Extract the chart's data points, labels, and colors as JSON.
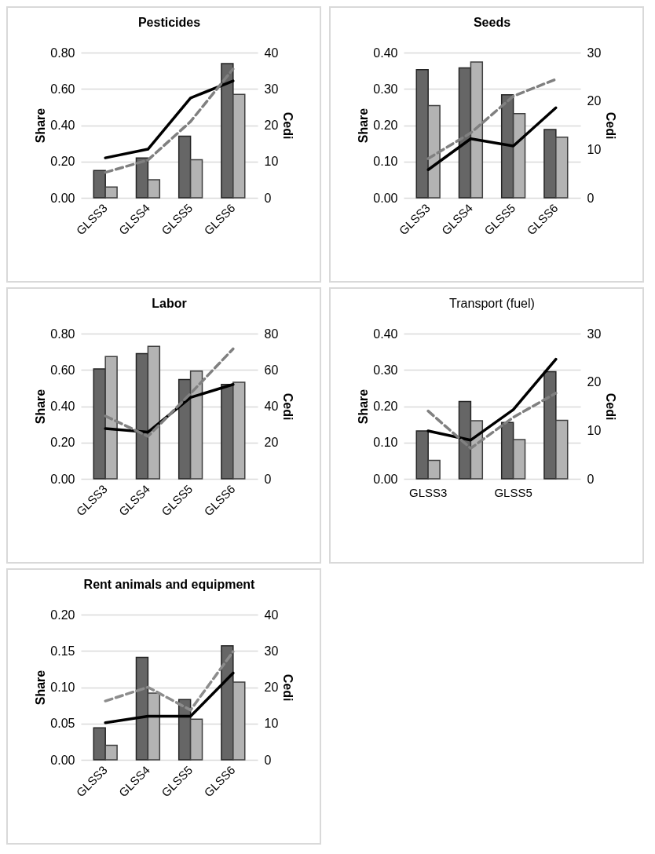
{
  "chart_data": [
    {
      "type": "bar",
      "title": "Pesticides",
      "ylabel": "Share",
      "y2label": "Cedi",
      "categories": [
        "GLSS3",
        "GLSS4",
        "GLSS5",
        "GLSS6"
      ],
      "ylim": [
        0,
        0.8
      ],
      "yticks": [
        {
          "value": 0,
          "label": "0.00"
        },
        {
          "value": 0.2,
          "label": "0.20"
        },
        {
          "value": 0.4,
          "label": "0.40"
        },
        {
          "value": 0.6,
          "label": "0.60"
        },
        {
          "value": 0.8,
          "label": "0.80"
        }
      ],
      "y2lim": [
        0,
        40
      ],
      "y2ticks": [
        0,
        10,
        20,
        30,
        40
      ],
      "grid": "y",
      "series": [
        {
          "color": "#666666",
          "values": [
            0.15,
            0.22,
            0.34,
            0.74
          ]
        },
        {
          "color": "#b3b3b3",
          "values": [
            0.06,
            0.1,
            0.21,
            0.57
          ]
        },
        {
          "type": "line",
          "axis": "y2",
          "color": "#000000",
          "line_style": "solid",
          "values": [
            11,
            13.4,
            27.5,
            32.2
          ]
        },
        {
          "type": "line",
          "axis": "y2",
          "color": "#808080",
          "line_style": "dashed",
          "values": [
            7,
            10.4,
            21,
            35.5
          ]
        }
      ]
    },
    {
      "type": "bar",
      "title": "Seeds",
      "ylabel": "Share",
      "y2label": "Cedi",
      "categories": [
        "GLSS3",
        "GLSS4",
        "GLSS5",
        "GLSS6"
      ],
      "ylim": [
        0,
        0.4
      ],
      "yticks": [
        {
          "value": 0,
          "label": "0.00"
        },
        {
          "value": 0.1,
          "label": "0.10"
        },
        {
          "value": 0.2,
          "label": "0.20"
        },
        {
          "value": 0.3,
          "label": "0.30"
        },
        {
          "value": 0.4,
          "label": "0.40"
        }
      ],
      "y2lim": [
        0,
        30
      ],
      "y2ticks": [
        0,
        10,
        20,
        30
      ],
      "grid": "y",
      "series": [
        {
          "color": "#666666",
          "values": [
            0.353,
            0.358,
            0.284,
            0.188
          ]
        },
        {
          "color": "#b3b3b3",
          "values": [
            0.254,
            0.374,
            0.232,
            0.167
          ]
        },
        {
          "type": "line",
          "axis": "y2",
          "color": "#000000",
          "line_style": "solid",
          "values": [
            5.8,
            12.2,
            10.7,
            18.6
          ]
        },
        {
          "type": "line",
          "axis": "y2",
          "color": "#808080",
          "line_style": "dashed",
          "values": [
            8.1,
            13.4,
            21,
            24.5
          ]
        }
      ]
    },
    {
      "type": "bar",
      "title": "Labor",
      "ylabel": "Share",
      "y2label": "Cedi",
      "categories": [
        "GLSS3",
        "GLSS4",
        "GLSS5",
        "GLSS6"
      ],
      "ylim": [
        0,
        0.8
      ],
      "yticks": [
        {
          "value": 0,
          "label": "0.00"
        },
        {
          "value": 0.2,
          "label": "0.20"
        },
        {
          "value": 0.4,
          "label": "0.40"
        },
        {
          "value": 0.6,
          "label": "0.60"
        },
        {
          "value": 0.8,
          "label": "0.80"
        }
      ],
      "y2lim": [
        0,
        80
      ],
      "y2ticks": [
        0,
        20,
        40,
        60,
        80
      ],
      "grid": "y",
      "series": [
        {
          "color": "#666666",
          "values": [
            0.605,
            0.69,
            0.547,
            0.52
          ]
        },
        {
          "color": "#b3b3b3",
          "values": [
            0.674,
            0.73,
            0.593,
            0.532
          ]
        },
        {
          "type": "line",
          "axis": "y2",
          "color": "#000000",
          "line_style": "solid",
          "values": [
            27.7,
            25.7,
            44.8,
            52
          ]
        },
        {
          "type": "line",
          "axis": "y2",
          "color": "#808080",
          "line_style": "dashed",
          "values": [
            34.6,
            23.4,
            47,
            71.6
          ]
        }
      ]
    },
    {
      "type": "bar",
      "title": "Transport (fuel)",
      "ylabel": "Share",
      "y2label": "Cedi",
      "categories": [
        "GLSS3",
        null,
        "GLSS5",
        null
      ],
      "ylim": [
        0,
        0.4
      ],
      "yticks": [
        {
          "value": 0,
          "label": "0.00"
        },
        {
          "value": 0.1,
          "label": "0.10"
        },
        {
          "value": 0.2,
          "label": "0.20"
        },
        {
          "value": 0.3,
          "label": "0.30"
        },
        {
          "value": 0.4,
          "label": "0.40"
        }
      ],
      "y2lim": [
        0,
        30
      ],
      "y2ticks": [
        0,
        10,
        20,
        30
      ],
      "grid": "y",
      "series": [
        {
          "color": "#666666",
          "values": [
            0.132,
            0.213,
            0.155,
            0.295
          ]
        },
        {
          "color": "#b3b3b3",
          "values": [
            0.051,
            0.16,
            0.108,
            0.161
          ]
        },
        {
          "type": "line",
          "axis": "y2",
          "color": "#000000",
          "line_style": "solid",
          "values": [
            9.9,
            8,
            14.3,
            24.7
          ]
        },
        {
          "type": "line",
          "axis": "y2",
          "color": "#808080",
          "line_style": "dashed",
          "values": [
            14,
            6.3,
            12.7,
            17.7
          ]
        }
      ]
    },
    {
      "type": "bar",
      "title": "Rent animals and equipment",
      "ylabel": "Share",
      "y2label": "Cedi",
      "categories": [
        "GLSS3",
        "GLSS4",
        "GLSS5",
        "GLSS6"
      ],
      "ylim": [
        0,
        0.2
      ],
      "yticks": [
        {
          "value": 0,
          "label": "0.00"
        },
        {
          "value": 0.05,
          "label": "0.05"
        },
        {
          "value": 0.1,
          "label": "0.10"
        },
        {
          "value": 0.15,
          "label": "0.15"
        },
        {
          "value": 0.2,
          "label": "0.20"
        }
      ],
      "y2lim": [
        0,
        40
      ],
      "y2ticks": [
        0,
        10,
        20,
        30,
        40
      ],
      "grid": "y",
      "series": [
        {
          "color": "#666666",
          "values": [
            0.044,
            0.141,
            0.083,
            0.157
          ]
        },
        {
          "color": "#b3b3b3",
          "values": [
            0.02,
            0.092,
            0.056,
            0.107
          ]
        },
        {
          "type": "line",
          "axis": "y2",
          "color": "#000000",
          "line_style": "solid",
          "values": [
            10.2,
            12,
            12,
            23.9
          ]
        },
        {
          "type": "line",
          "axis": "y2",
          "color": "#8c8c8c",
          "line_style": "dashed",
          "values": [
            16.2,
            20,
            13.7,
            29.8
          ]
        }
      ]
    }
  ]
}
